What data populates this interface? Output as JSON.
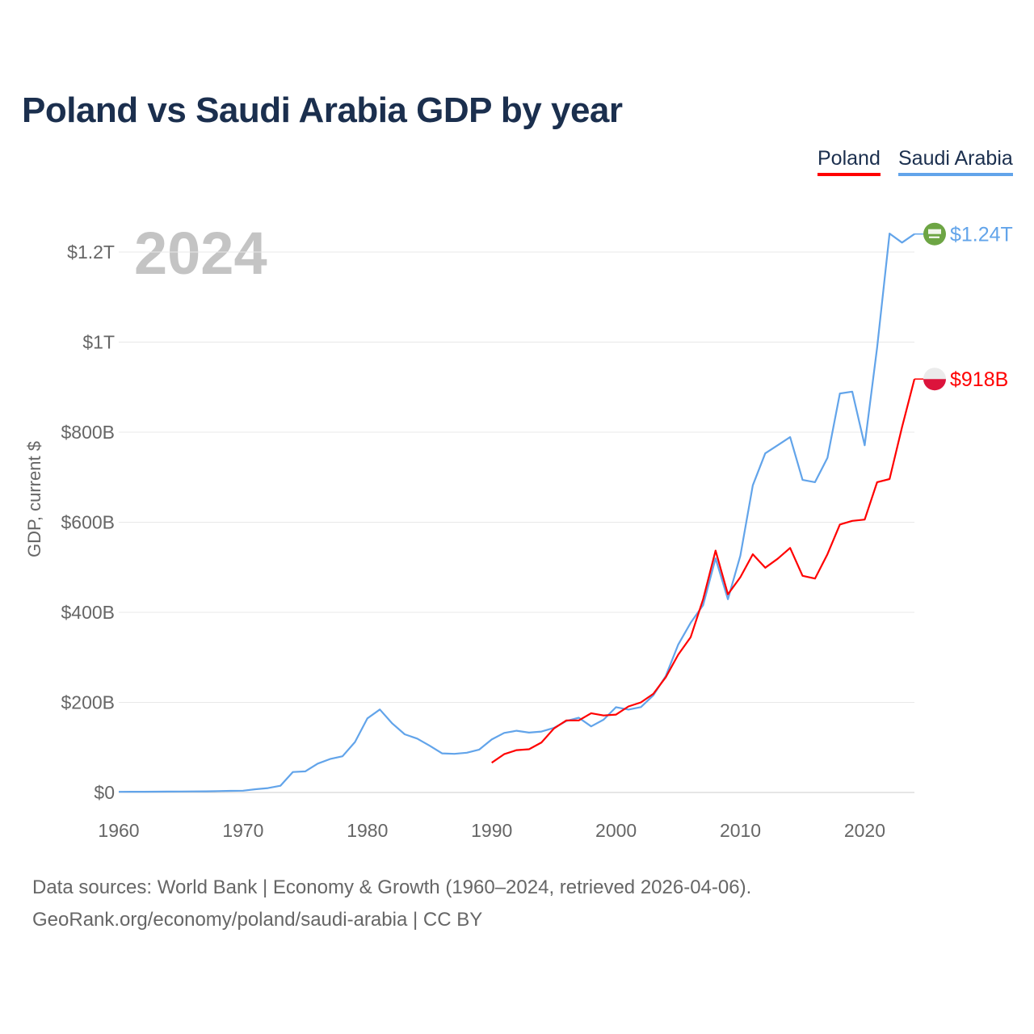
{
  "title": "Poland vs Saudi Arabia GDP by year",
  "legend": [
    {
      "label": "Poland",
      "color": "#ff0000"
    },
    {
      "label": "Saudi Arabia",
      "color": "#62a4ea"
    }
  ],
  "footer": {
    "line1": "Data sources: World Bank | Economy & Growth (1960–2024, retrieved 2026-04-06).",
    "line2": "GeoRank.org/economy/poland/saudi-arabia | CC BY"
  },
  "chart_data": {
    "type": "line",
    "title": "Poland vs Saudi Arabia GDP by year",
    "year_label": "2024",
    "ylabel": "GDP, current $",
    "xlabel": "",
    "xlim": [
      1960,
      2024
    ],
    "ylim": [
      0,
      1300
    ],
    "y_unit": "billion USD",
    "x_ticks": [
      "1960",
      "1970",
      "1980",
      "1990",
      "2000",
      "2010",
      "2020"
    ],
    "y_ticks": [
      {
        "v": 0,
        "label": "$0"
      },
      {
        "v": 200,
        "label": "$200B"
      },
      {
        "v": 400,
        "label": "$400B"
      },
      {
        "v": 600,
        "label": "$600B"
      },
      {
        "v": 800,
        "label": "$800B"
      },
      {
        "v": 1000,
        "label": "$1T"
      },
      {
        "v": 1200,
        "label": "$1.2T"
      }
    ],
    "grid": true,
    "legend_position": "top-right",
    "series": [
      {
        "name": "Poland",
        "color": "#ff0000",
        "end_label": "$918B",
        "flag": "poland-flag",
        "start_year": 1990,
        "values": [
          66,
          85,
          94,
          96,
          111,
          142,
          160,
          160,
          176,
          171,
          173,
          191,
          200,
          219,
          256,
          306,
          345,
          429,
          537,
          440,
          478,
          529,
          499,
          519,
          543,
          481,
          475,
          529,
          595,
          603,
          606,
          689,
          696,
          811,
          918
        ]
      },
      {
        "name": "Saudi Arabia",
        "color": "#62a4ea",
        "end_label": "$1.24T",
        "flag": "saudi-arabia-flag",
        "start_year": 1960,
        "values": [
          1.5,
          1.6,
          1.7,
          1.8,
          1.9,
          2.1,
          2.3,
          2.5,
          3,
          3.5,
          4,
          7.2,
          9.7,
          14.9,
          45.4,
          46.8,
          64,
          74.2,
          80.3,
          111.9,
          164.5,
          184.3,
          153.2,
          129.2,
          119.6,
          103.9,
          86.9,
          85.7,
          88.3,
          95.3,
          117.6,
          132.2,
          137.1,
          133,
          135.2,
          143.3,
          158.7,
          166,
          146.8,
          161.7,
          189.5,
          184.1,
          189.6,
          215.8,
          258.7,
          328.5,
          376.9,
          415.9,
          519.8,
          429.1,
          526,
          682,
          753,
          771,
          789,
          694,
          689,
          743,
          886,
          890,
          771,
          988,
          1241,
          1221,
          1240
        ]
      }
    ]
  }
}
